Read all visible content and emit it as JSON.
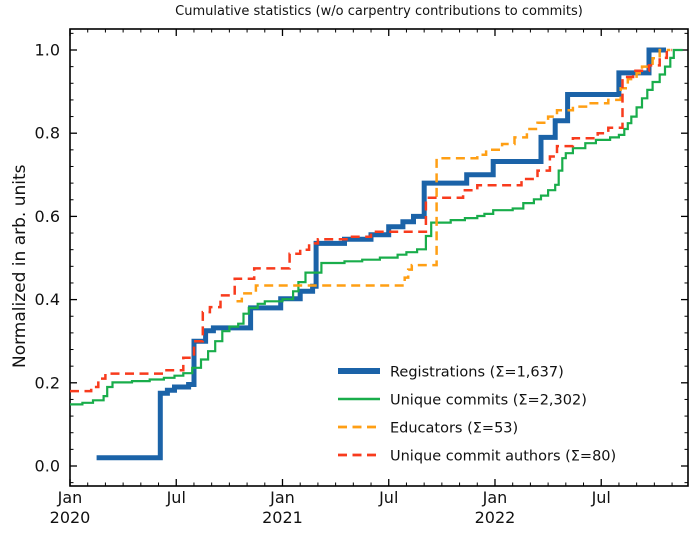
{
  "figure": {
    "title": "Cumulative statistics (w/o carpentry contributions to commits)",
    "ylabel": "Normalized in arb. units"
  },
  "chart_data": {
    "type": "line",
    "title": "Cumulative statistics (w/o carpentry contributions to commits)",
    "xlabel": "",
    "ylabel": "Normalized in arb. units",
    "x_unit": "months since 2020-01-01",
    "xlim_months": [
      0,
      34.9
    ],
    "ylim": [
      -0.048,
      1.05
    ],
    "grid": false,
    "tick_style": "in, mirrored on all four sides, monthly minor ticks on x, 0.04 minor steps on y",
    "x_ticks": [
      {
        "m": 0,
        "label": "Jan",
        "year": "2020"
      },
      {
        "m": 6,
        "label": "Jul",
        "year": ""
      },
      {
        "m": 12,
        "label": "Jan",
        "year": "2021"
      },
      {
        "m": 18,
        "label": "Jul",
        "year": ""
      },
      {
        "m": 24,
        "label": "Jan",
        "year": "2022"
      },
      {
        "m": 30,
        "label": "Jul",
        "year": ""
      }
    ],
    "y_ticks": [
      {
        "v": 0.0,
        "label": "0.0"
      },
      {
        "v": 0.2,
        "label": "0.2"
      },
      {
        "v": 0.4,
        "label": "0.4"
      },
      {
        "v": 0.6,
        "label": "0.6"
      },
      {
        "v": 0.8,
        "label": "0.8"
      },
      {
        "v": 1.0,
        "label": "1.0"
      }
    ],
    "legend": {
      "position": "lower right inside axes",
      "frame": false
    },
    "series": [
      {
        "name": "registrations",
        "label": "Registrations  (Σ=1,637)",
        "total": "1,637",
        "color": "#1b63a8",
        "style": "solid",
        "width": 5,
        "step": true,
        "points": [
          [
            1.5,
            0.02
          ],
          [
            5.1,
            0.175
          ],
          [
            5.5,
            0.182
          ],
          [
            5.9,
            0.19
          ],
          [
            6.7,
            0.196
          ],
          [
            7.0,
            0.3
          ],
          [
            7.66,
            0.325
          ],
          [
            8.1,
            0.332
          ],
          [
            10.2,
            0.38
          ],
          [
            11.9,
            0.402
          ],
          [
            13.0,
            0.42
          ],
          [
            13.7,
            0.432
          ],
          [
            13.9,
            0.535
          ],
          [
            15.5,
            0.545
          ],
          [
            17.0,
            0.556
          ],
          [
            18.0,
            0.575
          ],
          [
            18.8,
            0.587
          ],
          [
            19.4,
            0.6
          ],
          [
            20.0,
            0.68
          ],
          [
            22.4,
            0.7
          ],
          [
            23.9,
            0.732
          ],
          [
            26.6,
            0.79
          ],
          [
            27.4,
            0.83
          ],
          [
            28.1,
            0.893
          ],
          [
            31.0,
            0.945
          ],
          [
            32.7,
            1.0
          ],
          [
            33.66,
            1.0
          ]
        ]
      },
      {
        "name": "unique-commits",
        "label": "Unique commits (Σ=2,302)",
        "total": "2,302",
        "color": "#19ad4b",
        "style": "solid",
        "width": 2.2,
        "step": true,
        "points": [
          [
            0,
            0.148
          ],
          [
            0.7,
            0.152
          ],
          [
            1.3,
            0.158
          ],
          [
            1.9,
            0.168
          ],
          [
            2.1,
            0.19
          ],
          [
            2.4,
            0.201
          ],
          [
            3.5,
            0.204
          ],
          [
            4.5,
            0.208
          ],
          [
            5.3,
            0.212
          ],
          [
            5.9,
            0.217
          ],
          [
            6.4,
            0.223
          ],
          [
            6.9,
            0.236
          ],
          [
            7.4,
            0.256
          ],
          [
            7.8,
            0.276
          ],
          [
            8.2,
            0.3
          ],
          [
            8.6,
            0.324
          ],
          [
            9.0,
            0.335
          ],
          [
            9.5,
            0.342
          ],
          [
            9.8,
            0.366
          ],
          [
            10.1,
            0.38
          ],
          [
            10.6,
            0.39
          ],
          [
            11.0,
            0.396
          ],
          [
            12.0,
            0.401
          ],
          [
            12.6,
            0.42
          ],
          [
            12.9,
            0.442
          ],
          [
            13.3,
            0.465
          ],
          [
            14.2,
            0.488
          ],
          [
            15.5,
            0.492
          ],
          [
            16.5,
            0.496
          ],
          [
            17.5,
            0.501
          ],
          [
            18.5,
            0.508
          ],
          [
            19.0,
            0.514
          ],
          [
            19.6,
            0.521
          ],
          [
            20.1,
            0.553
          ],
          [
            20.4,
            0.585
          ],
          [
            21.5,
            0.591
          ],
          [
            22.3,
            0.596
          ],
          [
            23.0,
            0.601
          ],
          [
            23.4,
            0.606
          ],
          [
            23.9,
            0.615
          ],
          [
            25.0,
            0.619
          ],
          [
            25.6,
            0.632
          ],
          [
            26.2,
            0.641
          ],
          [
            26.6,
            0.65
          ],
          [
            27.0,
            0.663
          ],
          [
            27.4,
            0.676
          ],
          [
            27.6,
            0.71
          ],
          [
            27.8,
            0.74
          ],
          [
            28.0,
            0.752
          ],
          [
            28.4,
            0.764
          ],
          [
            29.1,
            0.776
          ],
          [
            29.7,
            0.784
          ],
          [
            30.5,
            0.79
          ],
          [
            31.0,
            0.796
          ],
          [
            31.3,
            0.81
          ],
          [
            31.5,
            0.824
          ],
          [
            31.7,
            0.84
          ],
          [
            32.0,
            0.862
          ],
          [
            32.3,
            0.884
          ],
          [
            32.6,
            0.904
          ],
          [
            32.9,
            0.923
          ],
          [
            33.3,
            0.941
          ],
          [
            33.6,
            0.96
          ],
          [
            33.9,
            0.981
          ],
          [
            34.1,
            1.0
          ],
          [
            34.6,
            1.0
          ]
        ]
      },
      {
        "name": "educators",
        "label": "Educators (Σ=53)",
        "total": "53",
        "color": "#ff9f14",
        "style": "dashed",
        "width": 2.5,
        "step": true,
        "points": [
          [
            9.4,
            0.396
          ],
          [
            9.7,
            0.415
          ],
          [
            10.5,
            0.434
          ],
          [
            18.9,
            0.453
          ],
          [
            19.1,
            0.472
          ],
          [
            19.3,
            0.483
          ],
          [
            20.7,
            0.74
          ],
          [
            23.0,
            0.748
          ],
          [
            23.5,
            0.76
          ],
          [
            24.4,
            0.774
          ],
          [
            25.1,
            0.79
          ],
          [
            25.8,
            0.81
          ],
          [
            26.4,
            0.825
          ],
          [
            27.0,
            0.84
          ],
          [
            27.5,
            0.855
          ],
          [
            28.4,
            0.864
          ],
          [
            29.3,
            0.872
          ],
          [
            30.4,
            0.88
          ],
          [
            31.1,
            0.908
          ],
          [
            31.5,
            0.93
          ],
          [
            32.0,
            0.944
          ],
          [
            32.3,
            0.96
          ],
          [
            32.9,
            0.98
          ],
          [
            33.3,
            1.0
          ],
          [
            33.9,
            1.0
          ]
        ]
      },
      {
        "name": "unique-commit-authors",
        "label": "Unique commit authors (Σ=80)",
        "total": "80",
        "color": "#f83b1d",
        "style": "dashed",
        "width": 2.5,
        "step": true,
        "points": [
          [
            0,
            0.18
          ],
          [
            1.2,
            0.19
          ],
          [
            1.6,
            0.21
          ],
          [
            2.0,
            0.222
          ],
          [
            5.3,
            0.23
          ],
          [
            6.4,
            0.26
          ],
          [
            7.0,
            0.3
          ],
          [
            7.5,
            0.37
          ],
          [
            7.9,
            0.382
          ],
          [
            8.5,
            0.41
          ],
          [
            9.3,
            0.45
          ],
          [
            10.4,
            0.475
          ],
          [
            12.4,
            0.51
          ],
          [
            13.0,
            0.52
          ],
          [
            13.5,
            0.535
          ],
          [
            14.0,
            0.545
          ],
          [
            15.7,
            0.551
          ],
          [
            17.0,
            0.563
          ],
          [
            20.1,
            0.645
          ],
          [
            22.2,
            0.663
          ],
          [
            23.0,
            0.675
          ],
          [
            25.5,
            0.69
          ],
          [
            26.4,
            0.71
          ],
          [
            27.1,
            0.744
          ],
          [
            27.5,
            0.769
          ],
          [
            28.4,
            0.788
          ],
          [
            29.8,
            0.8
          ],
          [
            30.4,
            0.813
          ],
          [
            31.2,
            0.935
          ],
          [
            31.8,
            0.95
          ],
          [
            32.7,
            0.963
          ],
          [
            33.3,
            0.981
          ],
          [
            33.7,
            1.0
          ],
          [
            34.0,
            1.0
          ]
        ]
      }
    ]
  }
}
